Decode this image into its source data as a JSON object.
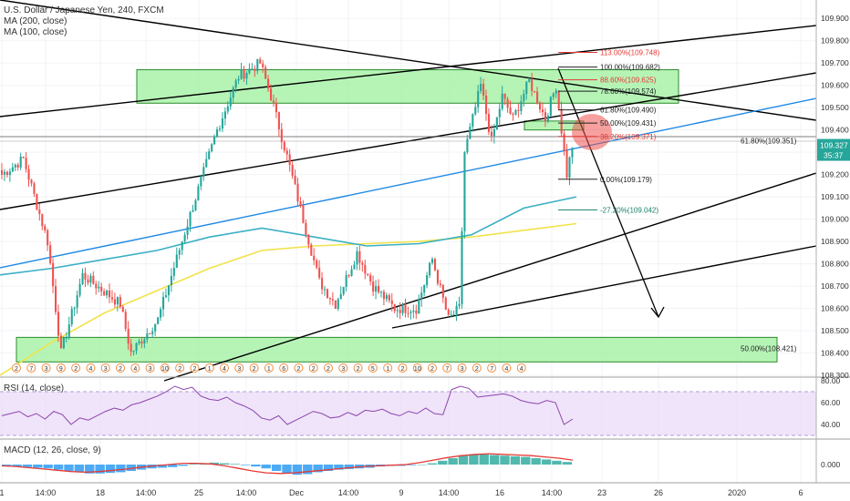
{
  "header": {
    "symbol_line": "U.S. Dollar / Japanese Yen, 240, FXCM",
    "ma200_label": "MA (200, close)",
    "ma100_label": "MA (100, close)",
    "rsi_label": "RSI (14, close)",
    "macd_label": "MACD (12, 26, close, 9)"
  },
  "price_badge": {
    "price": "109.327",
    "countdown": "35:37",
    "color": "#26a69a"
  },
  "colors": {
    "up": "#26a69a",
    "down": "#ef5350",
    "ma100": "#3bafc4",
    "ma200": "#f2e24a",
    "zone_fill": "#9ef09e",
    "zone_stroke": "#2c8a2c",
    "trend_line": "#1e88e5",
    "rsi_line": "#8e44ad",
    "rsi_band": "#e8d9f7",
    "macd_line": "#e53935",
    "fib_red": "#e53935"
  },
  "chart_data": [
    {
      "type": "candlestick",
      "title": "U.S. Dollar / Japanese Yen, 240, FXCM",
      "ylim": [
        108.3,
        109.95
      ],
      "y_ticks": [
        "109.900",
        "109.800",
        "109.700",
        "109.600",
        "109.500",
        "109.400",
        "109.300",
        "109.200",
        "109.100",
        "109.000",
        "108.900",
        "108.800",
        "108.700",
        "108.600",
        "108.500",
        "108.400",
        "108.300"
      ],
      "x_ticks": [
        "1",
        "14:00",
        "18",
        "14:00",
        "25",
        "14:00",
        "Dec",
        "14:00",
        "9",
        "14:00",
        "16",
        "14:00",
        "23",
        "26",
        "2020",
        "6"
      ],
      "key_points": [
        {
          "idx": 0,
          "price": 109.2
        },
        {
          "idx": 8,
          "price": 109.27
        },
        {
          "idx": 17,
          "price": 108.9
        },
        {
          "idx": 22,
          "price": 108.4
        },
        {
          "idx": 30,
          "price": 108.75
        },
        {
          "idx": 44,
          "price": 108.62
        },
        {
          "idx": 48,
          "price": 108.4
        },
        {
          "idx": 58,
          "price": 108.55
        },
        {
          "idx": 70,
          "price": 109.02
        },
        {
          "idx": 80,
          "price": 109.4
        },
        {
          "idx": 88,
          "price": 109.64
        },
        {
          "idx": 96,
          "price": 109.7
        },
        {
          "idx": 100,
          "price": 109.55
        },
        {
          "idx": 106,
          "price": 109.28
        },
        {
          "idx": 112,
          "price": 109.0
        },
        {
          "idx": 118,
          "price": 108.72
        },
        {
          "idx": 124,
          "price": 108.62
        },
        {
          "idx": 132,
          "price": 108.85
        },
        {
          "idx": 138,
          "price": 108.7
        },
        {
          "idx": 146,
          "price": 108.6
        },
        {
          "idx": 154,
          "price": 108.6
        },
        {
          "idx": 160,
          "price": 108.82
        },
        {
          "idx": 166,
          "price": 108.55
        },
        {
          "idx": 170,
          "price": 108.6
        },
        {
          "idx": 172,
          "price": 109.3
        },
        {
          "idx": 178,
          "price": 109.6
        },
        {
          "idx": 182,
          "price": 109.35
        },
        {
          "idx": 186,
          "price": 109.55
        },
        {
          "idx": 190,
          "price": 109.45
        },
        {
          "idx": 196,
          "price": 109.62
        },
        {
          "idx": 202,
          "price": 109.45
        },
        {
          "idx": 206,
          "price": 109.6
        },
        {
          "idx": 210,
          "price": 109.2
        },
        {
          "idx": 212,
          "price": 109.33
        }
      ],
      "series": [
        {
          "name": "MA (200, close)",
          "values": [
            108.3,
            108.45,
            108.58,
            108.68,
            108.78,
            108.86,
            108.88,
            108.89,
            108.9,
            108.92,
            108.95,
            108.98
          ]
        },
        {
          "name": "MA (100, close)",
          "values": [
            108.75,
            108.78,
            108.82,
            108.86,
            108.92,
            108.96,
            108.92,
            108.88,
            108.89,
            108.93,
            109.05,
            109.1
          ]
        }
      ],
      "fib_levels": [
        {
          "label": "113.00%(109.748)",
          "price": 109.748,
          "color": "red"
        },
        {
          "label": "100.00%(109.682)",
          "price": 109.682,
          "color": "black"
        },
        {
          "label": "88.60%(109.625)",
          "price": 109.625,
          "color": "red"
        },
        {
          "label": "78.60%(109.574)",
          "price": 109.574,
          "color": "black"
        },
        {
          "label": "61.80%(109.490)",
          "price": 109.49,
          "color": "black"
        },
        {
          "label": "50.00%(109.431)",
          "price": 109.431,
          "color": "black"
        },
        {
          "label": "38.20%(109.371)",
          "price": 109.371,
          "color": "red"
        },
        {
          "label": "0.00%(109.179)",
          "price": 109.179,
          "color": "black"
        },
        {
          "label": "-27.20%(109.042)",
          "price": 109.042,
          "color": "teal"
        }
      ],
      "horizontal_levels": [
        {
          "label": "61.80%(109.351)",
          "price": 109.351
        },
        {
          "label": "50.00%(108.421)",
          "price": 108.421
        }
      ],
      "zones": [
        {
          "name": "resistance",
          "price_top": 109.67,
          "price_bottom": 109.52
        },
        {
          "name": "support",
          "price_top": 108.47,
          "price_bottom": 108.36
        },
        {
          "name": "small",
          "price_top": 109.44,
          "price_bottom": 109.4
        }
      ],
      "event_markers": [
        "2",
        "7",
        "3",
        "9",
        "2",
        "4",
        "3",
        "2",
        "4",
        "3",
        "10",
        "2",
        "2",
        "1",
        "4",
        "3",
        "2",
        "1",
        "6",
        "2",
        "2",
        "2",
        "3",
        "2",
        "5",
        "1",
        "2",
        "10",
        "2",
        "7",
        "3",
        "2",
        "7",
        "4",
        "4"
      ]
    },
    {
      "type": "line",
      "title": "RSI (14, close)",
      "ylim": [
        30,
        80
      ],
      "y_ticks": [
        "80.00",
        "60.00",
        "40.00"
      ],
      "band": [
        30,
        70
      ],
      "values": [
        48,
        50,
        52,
        47,
        50,
        45,
        52,
        49,
        40,
        46,
        44,
        48,
        52,
        55,
        53,
        58,
        60,
        63,
        66,
        70,
        75,
        72,
        74,
        66,
        63,
        62,
        65,
        60,
        57,
        53,
        46,
        44,
        48,
        40,
        44,
        48,
        52,
        50,
        46,
        47,
        51,
        48,
        53,
        52,
        54,
        50,
        48,
        52,
        50,
        55,
        50,
        49,
        72,
        75,
        73,
        65,
        66,
        67,
        68,
        66,
        62,
        60,
        59,
        62,
        60,
        40,
        45
      ]
    },
    {
      "type": "bar",
      "title": "MACD (12, 26, close, 9)",
      "y_ticks": [
        "0.000"
      ],
      "histogram": [
        -0.02,
        -0.03,
        -0.04,
        -0.05,
        -0.06,
        -0.08,
        -0.1,
        -0.12,
        -0.14,
        -0.14,
        -0.13,
        -0.12,
        -0.1,
        -0.08,
        -0.06,
        -0.05,
        -0.04,
        -0.02,
        0.01,
        0.02,
        0.03,
        0.02,
        0.01,
        -0.01,
        -0.03,
        -0.06,
        -0.1,
        -0.14,
        -0.16,
        -0.15,
        -0.12,
        -0.1,
        -0.08,
        -0.07,
        -0.06,
        -0.05,
        -0.03,
        -0.02,
        -0.02,
        -0.01,
        0.0,
        0.02,
        0.06,
        0.1,
        0.14,
        0.16,
        0.16,
        0.15,
        0.14,
        0.13,
        0.12,
        0.1,
        0.08,
        0.06,
        0.04
      ],
      "signal": [
        -0.02,
        -0.03,
        -0.05,
        -0.07,
        -0.09,
        -0.11,
        -0.12,
        -0.11,
        -0.09,
        -0.07,
        -0.04,
        -0.02,
        0.0,
        0.02,
        0.02,
        0.01,
        -0.02,
        -0.06,
        -0.1,
        -0.13,
        -0.14,
        -0.13,
        -0.11,
        -0.09,
        -0.07,
        -0.05,
        -0.03,
        -0.02,
        -0.01,
        0.0,
        0.03,
        0.07,
        0.11,
        0.14,
        0.16,
        0.17,
        0.16,
        0.15,
        0.14,
        0.12,
        0.1,
        0.07
      ]
    }
  ]
}
